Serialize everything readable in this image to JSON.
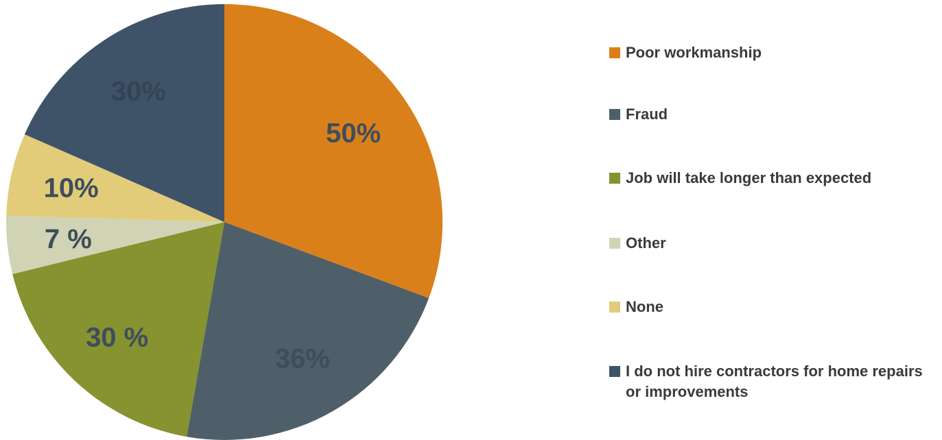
{
  "chart_data": {
    "type": "pie",
    "title": "",
    "slices": [
      {
        "name": "Poor workmanship",
        "value": 50,
        "label": "50%",
        "color": "#D9801A",
        "label_color": "#3F4D5C"
      },
      {
        "name": "Fraud",
        "value": 36,
        "label": "36%",
        "color": "#4F5F69",
        "label_color": "#3F4D5C"
      },
      {
        "name": "Job will take longer than expected",
        "value": 30,
        "label": "30 %",
        "color": "#879230",
        "label_color": "#3F4D5C"
      },
      {
        "name": "Other",
        "value": 7,
        "label": "7 %",
        "color": "#D0D4B4",
        "label_color": "#3F4D5C"
      },
      {
        "name": "None",
        "value": 10,
        "label": "10%",
        "color": "#E2CC7A",
        "label_color": "#3F4D5C"
      },
      {
        "name": "I do not hire contractors for home repairs or improvements",
        "value": 30,
        "label": "30%",
        "color": "#3E5368",
        "label_color": "#334456"
      }
    ],
    "legend_position": "right"
  }
}
